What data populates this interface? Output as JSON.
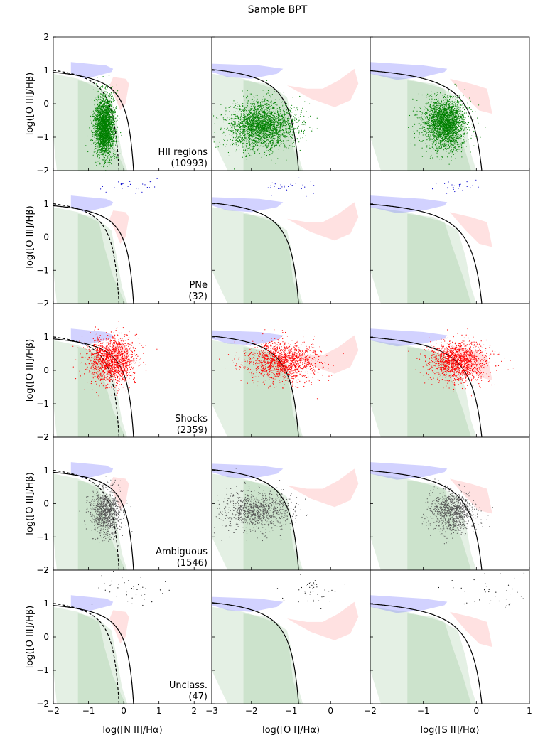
{
  "figure": {
    "title": "Sample BPT"
  },
  "chart_data": {
    "type": "scatter",
    "title": "Sample BPT",
    "layout": "5 rows x 3 columns, shared axes",
    "columns": [
      {
        "xlabel": "log([N II]/Hα)",
        "xlim": [
          -2,
          2.5
        ],
        "xticks": [
          -2,
          -1,
          0,
          1,
          2
        ],
        "xtick_labels": [
          "−2",
          "−1",
          "0",
          "1",
          "2"
        ],
        "kauffmann_curve": true,
        "kewley_curve_asymptote": 0.47
      },
      {
        "xlabel": "log([O I]/Hα)",
        "xlim": [
          -3,
          1
        ],
        "xticks": [
          -3,
          -2,
          -1,
          0
        ],
        "xtick_labels": [
          "−3",
          "−2",
          "−1",
          "0"
        ],
        "kauffmann_curve": false,
        "kewley_curve_asymptote": -0.59
      },
      {
        "xlabel": "log([S II]/Hα)",
        "xlim": [
          -2,
          1
        ],
        "xticks": [
          -2,
          -1,
          0,
          1
        ],
        "xtick_labels": [
          "−2",
          "−1",
          "0",
          "1"
        ],
        "kauffmann_curve": false,
        "kewley_curve_asymptote": 0.32
      }
    ],
    "ylabel": "log([O III]/Hβ)",
    "ylim": [
      -2,
      2
    ],
    "yticks": [
      -2,
      -1,
      0,
      1,
      2
    ],
    "ytick_labels": [
      "−2",
      "−1",
      "0",
      "1",
      "2"
    ],
    "background_regions": [
      {
        "name": "HII",
        "color": "#2e8b2e"
      },
      {
        "name": "PNe",
        "color": "#4a4aff"
      },
      {
        "name": "shocks",
        "color": "#ff5a5a"
      }
    ],
    "series": [
      {
        "name": "HII regions",
        "count_label": "(10993)",
        "color": "#008000",
        "n_display": 2600,
        "centers": [
          [
            -0.55,
            -0.7
          ],
          [
            -1.75,
            -0.65
          ],
          [
            -0.6,
            -0.6
          ]
        ],
        "spreads": [
          [
            0.14,
            0.45
          ],
          [
            0.42,
            0.35
          ],
          [
            0.2,
            0.38
          ]
        ]
      },
      {
        "name": "PNe",
        "count_label": "(32)",
        "color": "#0000cc",
        "n_display": 26,
        "centers": [
          [
            0.15,
            1.55
          ],
          [
            -0.95,
            1.5
          ],
          [
            -0.45,
            1.5
          ]
        ],
        "spreads": [
          [
            0.45,
            0.1
          ],
          [
            0.35,
            0.1
          ],
          [
            0.25,
            0.1
          ]
        ]
      },
      {
        "name": "Shocks",
        "count_label": "(2359)",
        "color": "#ff0000",
        "n_display": 1500,
        "centers": [
          [
            -0.35,
            0.3
          ],
          [
            -1.2,
            0.25
          ],
          [
            -0.35,
            0.25
          ]
        ],
        "spreads": [
          [
            0.35,
            0.35
          ],
          [
            0.45,
            0.3
          ],
          [
            0.28,
            0.3
          ]
        ]
      },
      {
        "name": "Ambiguous",
        "count_label": "(1546)",
        "color": "#555555",
        "n_display": 1000,
        "centers": [
          [
            -0.5,
            -0.25
          ],
          [
            -1.85,
            -0.2
          ],
          [
            -0.45,
            -0.25
          ]
        ],
        "spreads": [
          [
            0.22,
            0.35
          ],
          [
            0.45,
            0.3
          ],
          [
            0.22,
            0.3
          ]
        ]
      },
      {
        "name": "Unclass.",
        "count_label": "(47)",
        "color": "#000000",
        "n_display": 40,
        "centers": [
          [
            0.2,
            1.4
          ],
          [
            -0.5,
            1.3
          ],
          [
            0.3,
            1.3
          ]
        ],
        "spreads": [
          [
            0.5,
            0.25
          ],
          [
            0.35,
            0.25
          ],
          [
            0.45,
            0.25
          ]
        ]
      }
    ]
  }
}
